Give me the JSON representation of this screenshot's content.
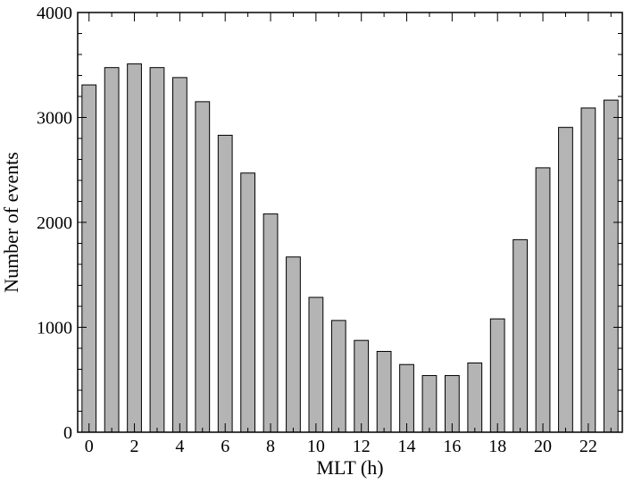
{
  "chart_data": {
    "type": "bar",
    "title": "",
    "xlabel": "MLT (h)",
    "ylabel": "Number of events",
    "x": [
      0,
      1,
      2,
      3,
      4,
      5,
      6,
      7,
      8,
      9,
      10,
      11,
      12,
      13,
      14,
      15,
      16,
      17,
      18,
      19,
      20,
      21,
      22,
      23
    ],
    "values": [
      3310,
      3475,
      3510,
      3475,
      3380,
      3150,
      2830,
      2470,
      2080,
      1670,
      1285,
      1065,
      875,
      770,
      645,
      540,
      540,
      660,
      1080,
      1835,
      2520,
      2905,
      3090,
      3165
    ],
    "xlim": [
      -0.5,
      23.5
    ],
    "ylim": [
      0,
      4000
    ],
    "xticks_labeled": [
      0,
      2,
      4,
      6,
      8,
      10,
      12,
      14,
      16,
      18,
      20,
      22
    ],
    "xticks_minor": [
      1,
      3,
      5,
      7,
      9,
      11,
      13,
      15,
      17,
      19,
      21,
      23
    ],
    "yticks_labeled": [
      0,
      1000,
      2000,
      3000,
      4000
    ],
    "bar_width": 0.62,
    "grid": false,
    "legend": "none",
    "colors": {
      "bar_fill": "#b4b4b4",
      "bar_stroke": "#000000",
      "axis": "#000000",
      "background": "#ffffff"
    }
  }
}
